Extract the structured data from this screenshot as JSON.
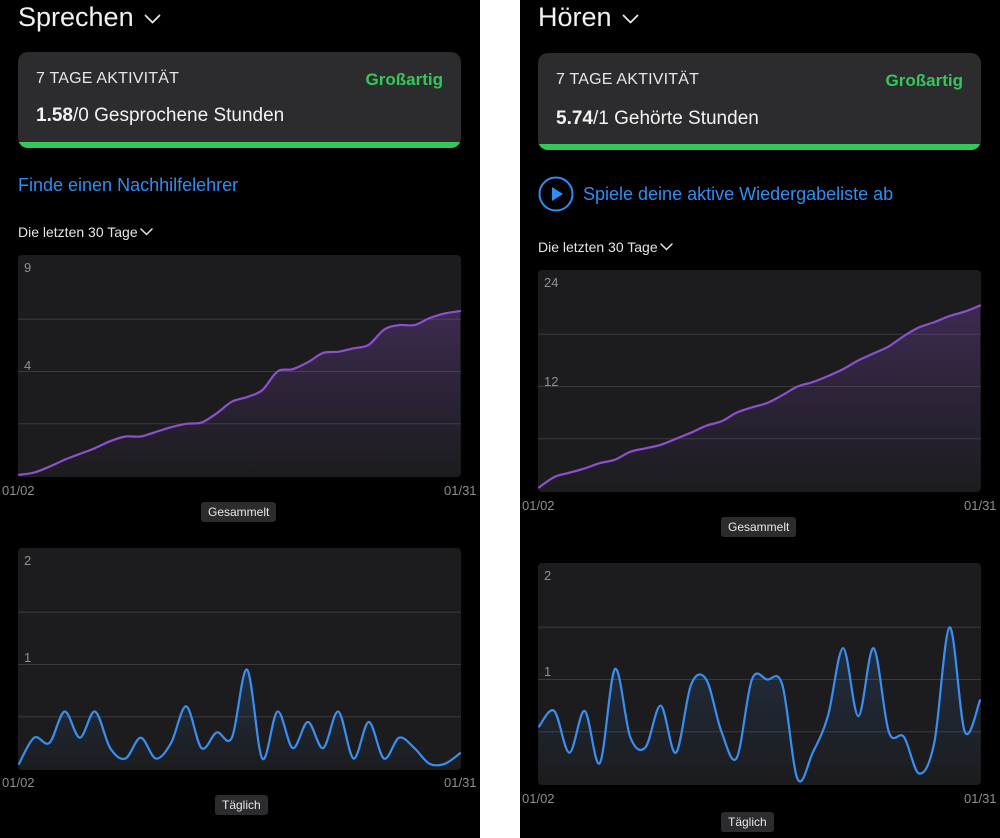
{
  "left": {
    "title": "Sprechen",
    "card": {
      "label": "7 TAGE AKTIVITÄT",
      "status": "Großartig",
      "value_bold": "1.58",
      "value_rest": "/0 Gesprochene Stunden"
    },
    "link": "Finde einen Nachhilfelehrer",
    "range": "Die letzten 30 Tage",
    "cumulative": {
      "ymax": "9",
      "ymid": "4",
      "x_start": "01/02",
      "x_end": "01/31",
      "label": "Gesammelt"
    },
    "daily": {
      "ymax": "2",
      "ymid": "1",
      "x_start": "01/02",
      "x_end": "01/31",
      "label": "Täglich"
    }
  },
  "right": {
    "title": "Hören",
    "card": {
      "label": "7 TAGE AKTIVITÄT",
      "status": "Großartig",
      "value_bold": "5.74",
      "value_rest": "/1 Gehörte Stunden"
    },
    "link": "Spiele deine aktive Wiedergabeliste ab",
    "range": "Die letzten 30 Tage",
    "cumulative": {
      "ymax": "24",
      "ymid": "12",
      "x_start": "01/02",
      "x_end": "01/31",
      "label": "Gesammelt"
    },
    "daily": {
      "ymax": "2",
      "ymid": "1",
      "x_start": "01/02",
      "x_end": "01/31",
      "label": "Täglich"
    }
  },
  "colors": {
    "accent_green": "#34c759",
    "link_blue": "#2f8ef4",
    "purple": "#8e4fd0",
    "daily_blue": "#3a8ef0"
  },
  "chart_data": [
    {
      "type": "area",
      "title": "",
      "series": [
        {
          "name": "Gesammelt",
          "values": [
            0.05,
            0.15,
            0.4,
            0.7,
            0.95,
            1.2,
            1.5,
            1.7,
            1.7,
            1.9,
            2.1,
            2.25,
            2.3,
            2.7,
            3.2,
            3.4,
            3.7,
            4.5,
            4.6,
            4.9,
            5.3,
            5.35,
            5.5,
            5.65,
            6.3,
            6.5,
            6.5,
            6.8,
            7.0,
            7.1
          ]
        }
      ],
      "ylim": [
        0,
        9
      ],
      "x_start": "01/02",
      "x_end": "01/31"
    },
    {
      "type": "line",
      "title": "",
      "series": [
        {
          "name": "Täglich",
          "values": [
            0.05,
            0.3,
            0.25,
            0.55,
            0.3,
            0.55,
            0.2,
            0.1,
            0.3,
            0.1,
            0.25,
            0.6,
            0.2,
            0.35,
            0.3,
            0.95,
            0.1,
            0.55,
            0.2,
            0.45,
            0.2,
            0.55,
            0.1,
            0.45,
            0.1,
            0.3,
            0.2,
            0.05,
            0.05,
            0.15
          ]
        }
      ],
      "ylim": [
        0,
        2
      ],
      "x_start": "01/02",
      "x_end": "01/31"
    },
    {
      "type": "area",
      "title": "",
      "series": [
        {
          "name": "Gesammelt",
          "values": [
            0.4,
            1.6,
            2.1,
            2.6,
            3.2,
            3.6,
            4.5,
            4.9,
            5.3,
            6.0,
            6.7,
            7.5,
            8.0,
            9.0,
            9.6,
            10.1,
            11.0,
            12.0,
            12.5,
            13.2,
            14.0,
            15.0,
            15.8,
            16.6,
            17.8,
            18.8,
            19.4,
            20.1,
            20.6,
            21.3
          ]
        }
      ],
      "ylim": [
        0,
        24
      ],
      "x_start": "01/02",
      "x_end": "01/31"
    },
    {
      "type": "line",
      "title": "",
      "series": [
        {
          "name": "Täglich",
          "values": [
            0.55,
            0.7,
            0.3,
            0.7,
            0.2,
            1.1,
            0.45,
            0.35,
            0.75,
            0.3,
            0.95,
            1.0,
            0.5,
            0.25,
            1.0,
            1.0,
            0.95,
            0.05,
            0.3,
            0.65,
            1.3,
            0.65,
            1.3,
            0.5,
            0.45,
            0.1,
            0.4,
            1.5,
            0.5,
            0.8
          ]
        }
      ],
      "ylim": [
        0,
        2
      ],
      "x_start": "01/02",
      "x_end": "01/31"
    }
  ]
}
